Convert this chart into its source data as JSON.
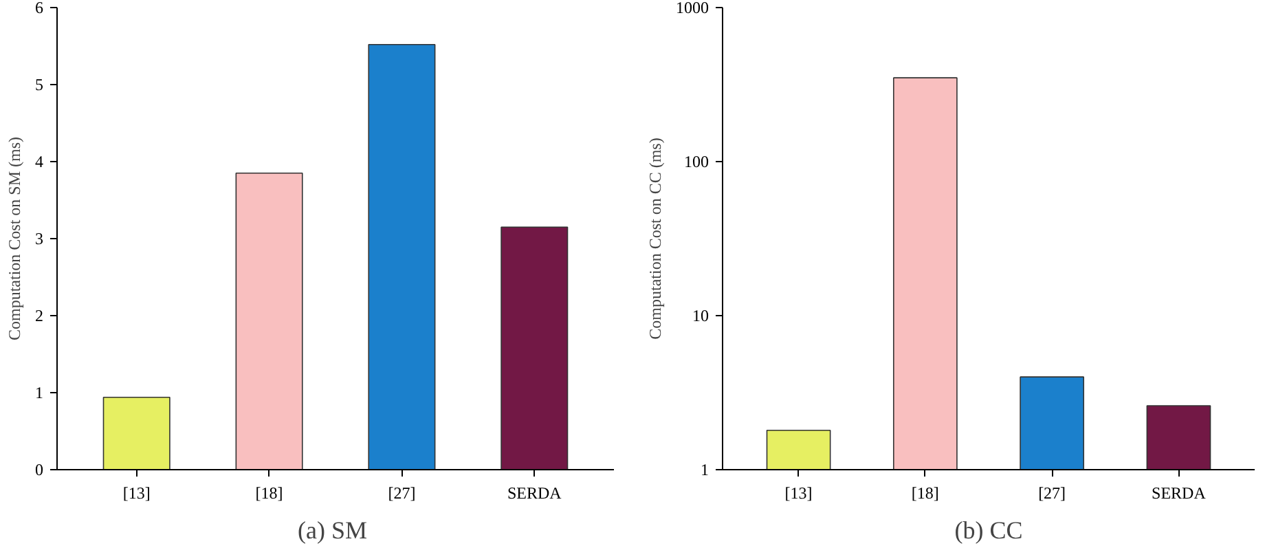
{
  "chart_data": [
    {
      "type": "bar",
      "title": "(a)  SM",
      "ylabel": "Computation Cost on SM (ms)",
      "categories": [
        "[13]",
        "[18]",
        "[27]",
        "SERDA"
      ],
      "values": [
        0.94,
        3.85,
        5.52,
        3.15
      ],
      "colors": [
        "#e6ef62",
        "#f9bfbf",
        "#1b80cc",
        "#721845"
      ],
      "ylim": [
        0,
        6
      ],
      "yticks": [
        0,
        1,
        2,
        3,
        4,
        5,
        6
      ],
      "grid": false,
      "legend": false
    },
    {
      "type": "bar",
      "title": "(b) CC",
      "ylabel": "Computation Cost on CC (ms)",
      "categories": [
        "[13]",
        "[18]",
        "[27]",
        "SERDA"
      ],
      "values": [
        1.8,
        350,
        4.0,
        2.6
      ],
      "colors": [
        "#e6ef62",
        "#f9bfbf",
        "#1b80cc",
        "#721845"
      ],
      "log": true,
      "ylim": [
        1,
        1000
      ],
      "yticks": [
        1,
        10,
        100,
        1000
      ],
      "grid": false,
      "legend": false
    }
  ]
}
